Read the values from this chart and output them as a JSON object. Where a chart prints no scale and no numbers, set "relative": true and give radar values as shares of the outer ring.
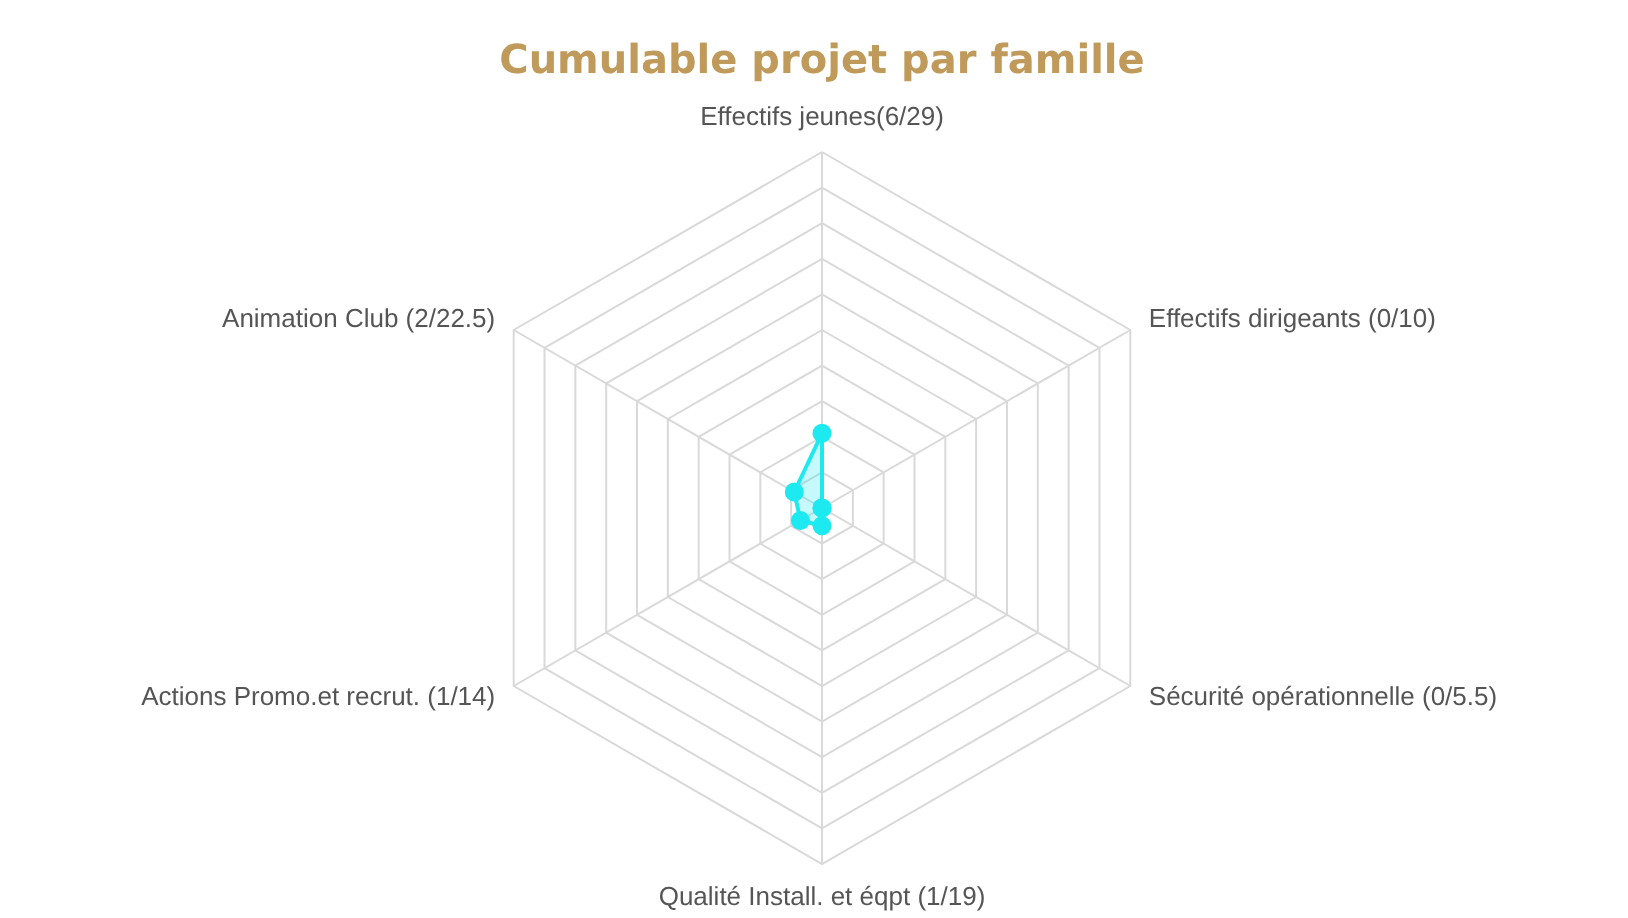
{
  "chart_data": {
    "type": "radar",
    "title": "Cumulable projet par famille",
    "relative": true,
    "grid": true,
    "marker": "circle",
    "categories": [
      "Effectifs jeunes(6/29)",
      "Effectifs dirigeants (0/10)",
      "Sécurité opérationnelle (0/5.5)",
      "Qualité Install. et éqpt (1/19)",
      "Actions Promo.et recrut. (1/14)",
      "Animation Club (2/22.5)"
    ],
    "series": [
      {
        "color": "#1de9f0",
        "values": [
          0.21,
          0,
          0,
          0.05,
          0.07,
          0.09
        ]
      }
    ]
  }
}
